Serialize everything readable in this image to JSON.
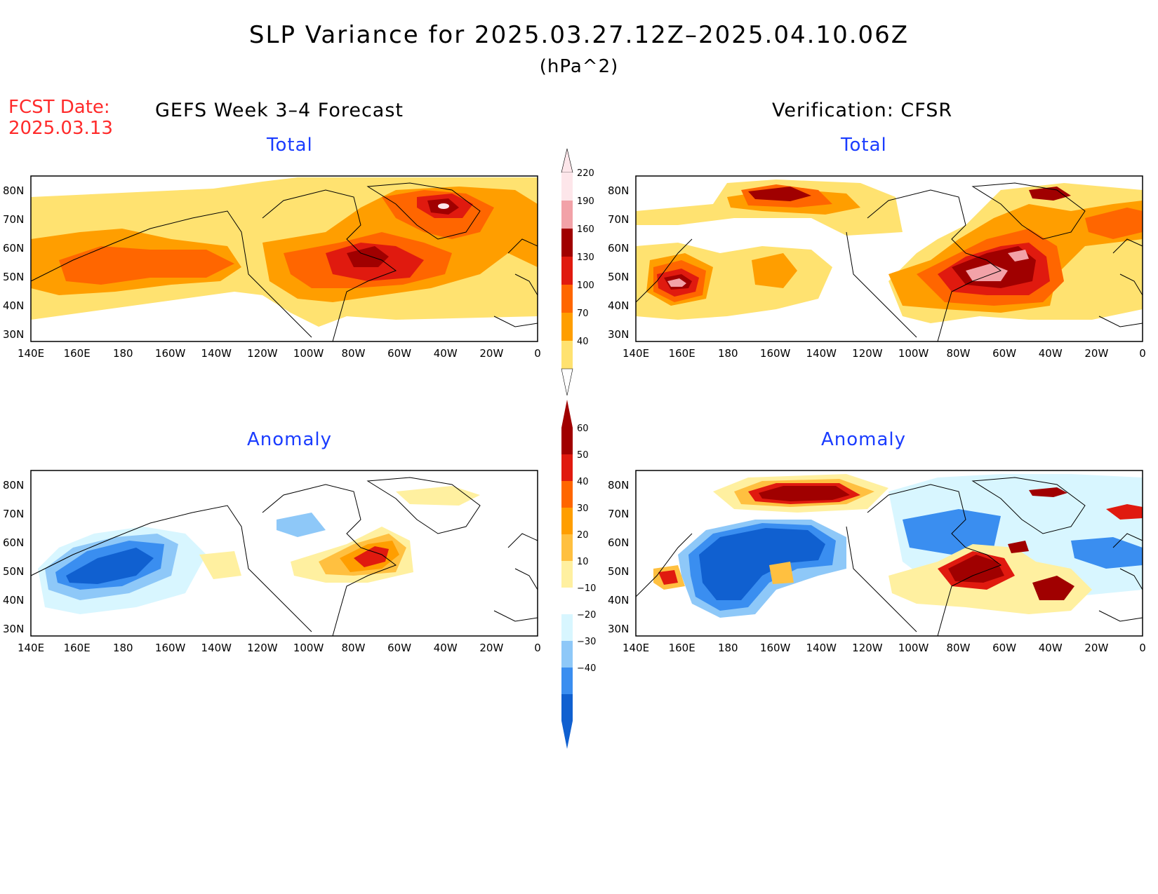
{
  "title": "SLP Variance for 2025.03.27.12Z–2025.04.10.06Z",
  "units": "(hPa^2)",
  "fcst_date": {
    "label": "FCST Date:",
    "value": "2025.03.13"
  },
  "columns": {
    "left": "GEFS Week 3–4 Forecast",
    "right": "Verification: CFSR"
  },
  "panel_titles": {
    "total": "Total",
    "anomaly": "Anomaly"
  },
  "axes": {
    "lon_labels": [
      "140E",
      "160E",
      "180",
      "160W",
      "140W",
      "120W",
      "100W",
      "80W",
      "60W",
      "40W",
      "20W",
      "0"
    ],
    "lat_labels": [
      "80N",
      "70N",
      "60N",
      "50N",
      "40N",
      "30N"
    ]
  },
  "colorbars": {
    "total": {
      "levels": [
        "220",
        "190",
        "160",
        "130",
        "100",
        "70",
        "40"
      ],
      "colors": [
        "#fde6ea",
        "#f2a2a8",
        "#a00000",
        "#e01a0f",
        "#ff6600",
        "#ff9e00",
        "#ffe270"
      ]
    },
    "anomaly": {
      "levels": [
        "60",
        "50",
        "40",
        "30",
        "20",
        "10",
        "−10",
        "−20",
        "−30",
        "−40"
      ],
      "colors": [
        "#a00000",
        "#e01a0f",
        "#ff6600",
        "#ff9e00",
        "#ffc040",
        "#fff0a0",
        "#ffffff",
        "#d8f6ff",
        "#8ec8f8",
        "#3a8ef0",
        "#1060d0"
      ]
    }
  },
  "colors": {
    "total": {
      "c40": "#ffe270",
      "c70": "#ff9e00",
      "c100": "#ff6600",
      "c130": "#e01a0f",
      "c160": "#a00000",
      "c190": "#f2a2a8",
      "c220": "#fde6ea"
    },
    "anomaly": {
      "pos10": "#fff0a0",
      "pos20": "#ffc040",
      "pos30": "#ff9e00",
      "pos40": "#ff6600",
      "pos50": "#e01a0f",
      "pos60": "#a00000",
      "neg10": "#d8f6ff",
      "neg20": "#8ec8f8",
      "neg30": "#3a8ef0",
      "neg40": "#1060d0"
    }
  }
}
